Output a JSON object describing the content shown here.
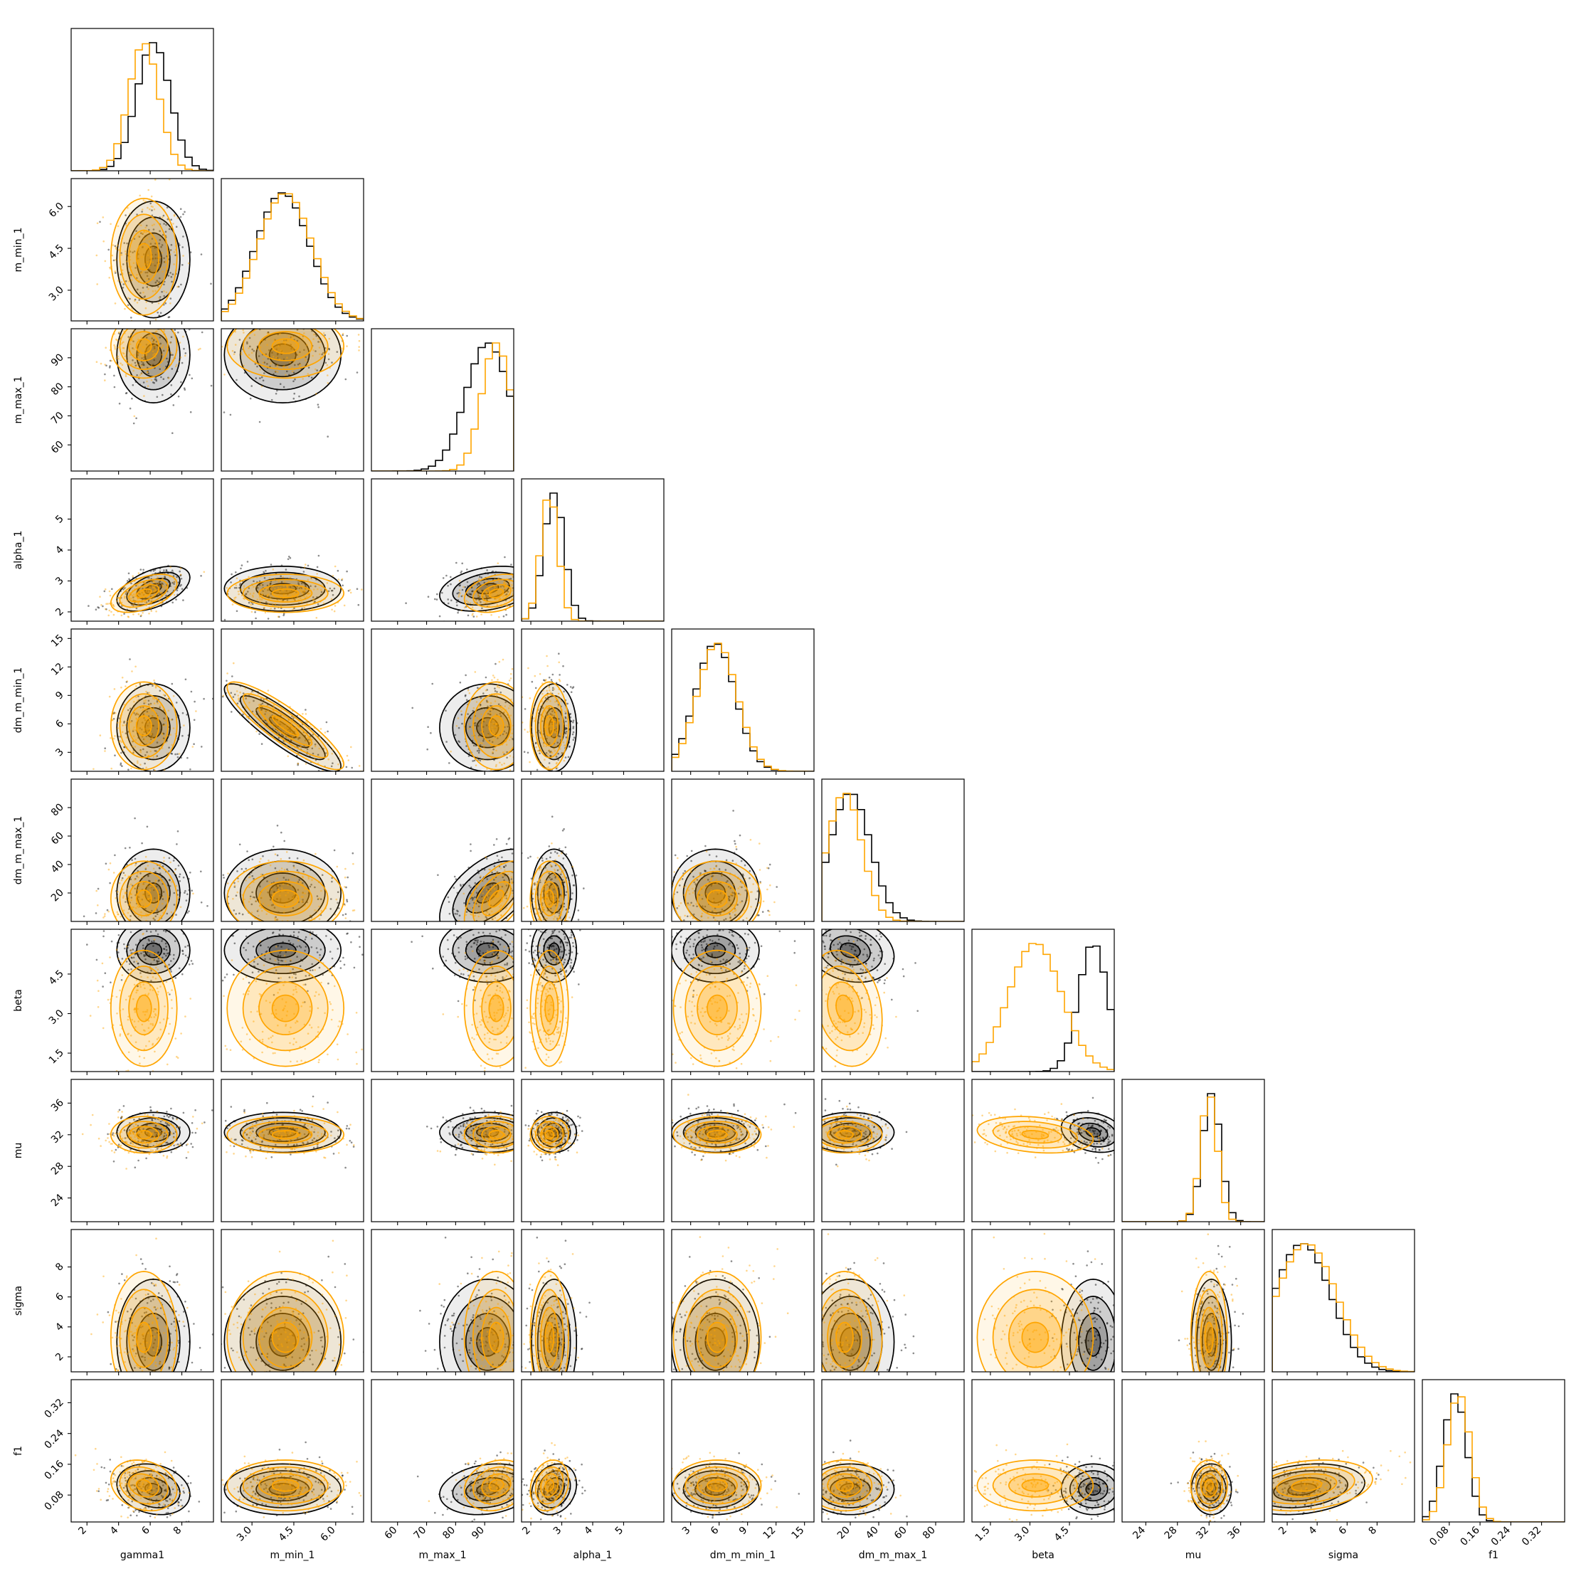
{
  "chart_data": {
    "type": "corner",
    "parameters": [
      "gamma1",
      "m_min_1",
      "m_max_1",
      "alpha_1",
      "dm_m_min_1",
      "dm_m_max_1",
      "beta",
      "mu",
      "sigma",
      "f1"
    ],
    "ranges": [
      [
        1,
        10
      ],
      [
        1.9,
        7.0
      ],
      [
        51,
        100
      ],
      [
        1.7,
        6.3
      ],
      [
        1,
        16
      ],
      [
        0,
        100
      ],
      [
        0.8,
        6.2
      ],
      [
        21,
        39
      ],
      [
        1,
        10.5
      ],
      [
        0.01,
        0.38
      ]
    ],
    "ticks": [
      [
        "2",
        "4",
        "6",
        "8"
      ],
      [
        "3.0",
        "4.5",
        "6.0"
      ],
      [
        "60",
        "70",
        "80",
        "90"
      ],
      [
        "2",
        "3",
        "4",
        "5"
      ],
      [
        "3",
        "6",
        "9",
        "12",
        "15"
      ],
      [
        "20",
        "40",
        "60",
        "80"
      ],
      [
        "1.5",
        "3.0",
        "4.5"
      ],
      [
        "24",
        "28",
        "32",
        "36"
      ],
      [
        "2",
        "4",
        "6",
        "8"
      ],
      [
        "0.08",
        "0.16",
        "0.24",
        "0.32"
      ]
    ],
    "series": [
      {
        "color": "#000000",
        "means": [
          6.2,
          4.1,
          91,
          2.75,
          5.6,
          20,
          5.4,
          32.3,
          3.0,
          0.095
        ],
        "sds": [
          1.05,
          0.95,
          7.5,
          0.33,
          2.1,
          14,
          0.55,
          1.15,
          1.9,
          0.03
        ]
      },
      {
        "color": "#FFA500",
        "means": [
          5.6,
          4.2,
          94,
          2.6,
          5.8,
          16,
          3.2,
          32.0,
          3.3,
          0.105
        ],
        "sds": [
          0.95,
          0.95,
          5.0,
          0.28,
          2.1,
          12,
          1.0,
          1.05,
          2.0,
          0.03
        ]
      }
    ],
    "correlations": [
      [
        0,
        3,
        0.5
      ],
      [
        1,
        4,
        -0.88
      ],
      [
        2,
        3,
        0.3
      ],
      [
        2,
        5,
        0.55
      ],
      [
        6,
        7,
        -0.25
      ],
      [
        8,
        9,
        0.25
      ],
      [
        0,
        9,
        -0.2
      ],
      [
        2,
        9,
        0.2
      ],
      [
        3,
        9,
        0.2
      ],
      [
        5,
        6,
        -0.2
      ]
    ]
  }
}
